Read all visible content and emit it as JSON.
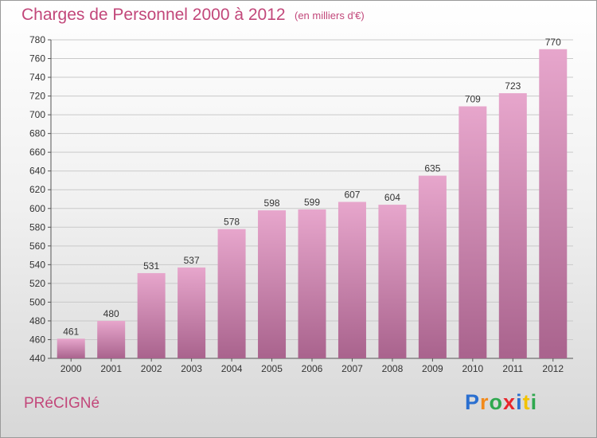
{
  "header": {
    "title": "Charges de Personnel 2000 à 2012",
    "subtitle": "(en milliers d'€)"
  },
  "footer": {
    "commune": "PRéCIGNé",
    "brand_letters": [
      {
        "char": "P",
        "color": "#2a6fd0"
      },
      {
        "char": "r",
        "color": "#f28a1b"
      },
      {
        "char": "o",
        "color": "#2fa84f"
      },
      {
        "char": "x",
        "color": "#e8262c"
      },
      {
        "char": "i",
        "color": "#2a6fd0"
      },
      {
        "char": "t",
        "color": "#f2c200"
      },
      {
        "char": "i",
        "color": "#2fa84f"
      }
    ]
  },
  "chart_data": {
    "type": "bar",
    "categories": [
      "2000",
      "2001",
      "2002",
      "2003",
      "2004",
      "2005",
      "2006",
      "2007",
      "2008",
      "2009",
      "2010",
      "2011",
      "2012"
    ],
    "values": [
      461,
      480,
      531,
      537,
      578,
      598,
      599,
      607,
      604,
      635,
      709,
      723,
      770
    ],
    "title": "Charges de Personnel 2000 à 2012",
    "subtitle": "(en milliers d'€)",
    "ylim": [
      440,
      780
    ],
    "yticks": [
      440,
      460,
      480,
      500,
      520,
      540,
      560,
      580,
      600,
      620,
      640,
      660,
      680,
      700,
      720,
      740,
      760,
      780
    ],
    "grid": true,
    "bar_color": "#c9739f"
  }
}
